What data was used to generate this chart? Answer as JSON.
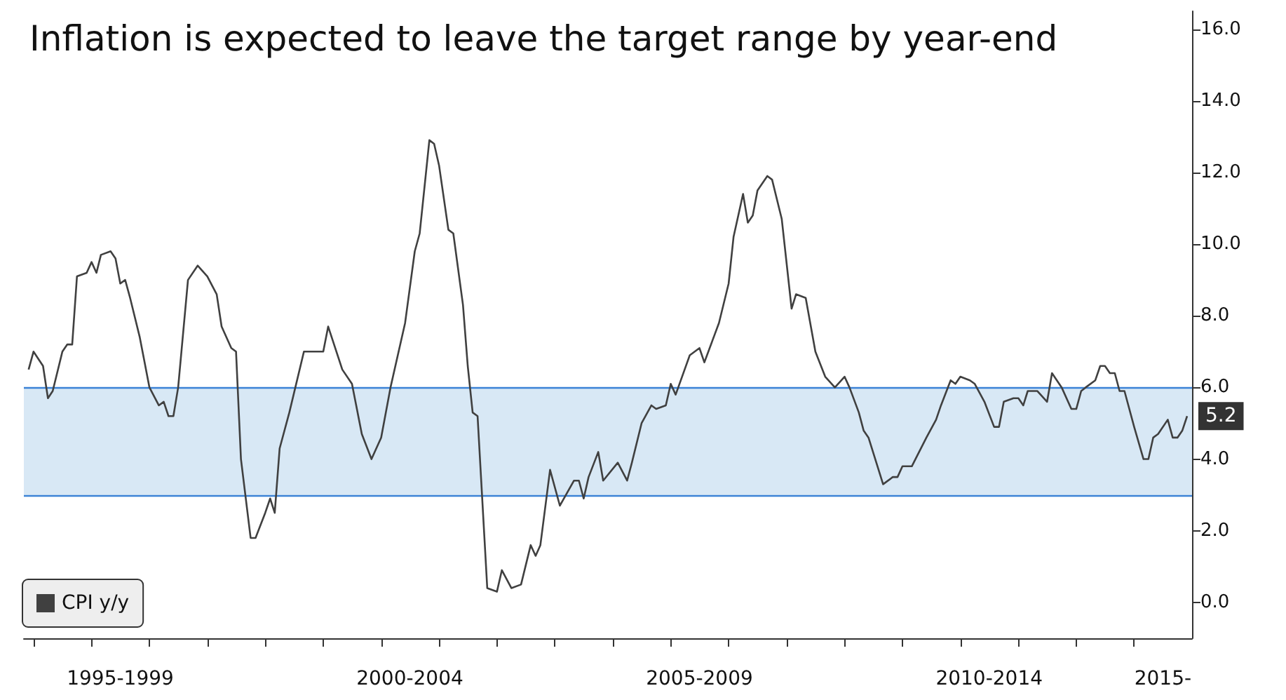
{
  "chart_data": {
    "type": "line",
    "title": "Inflation is expected to leave the target range by year-end",
    "x": [
      "1995-12",
      "1996-01",
      "1996-03",
      "1996-04",
      "1996-05",
      "1996-07",
      "1996-08",
      "1996-09",
      "1996-10",
      "1996-12",
      "1997-01",
      "1997-02",
      "1997-03",
      "1997-05",
      "1997-06",
      "1997-07",
      "1997-08",
      "1997-09",
      "1997-11",
      "1998-01",
      "1998-03",
      "1998-04",
      "1998-05",
      "1998-06",
      "1998-07",
      "1998-09",
      "1998-11",
      "1999-01",
      "1999-03",
      "1999-04",
      "1999-06",
      "1999-07",
      "1999-08",
      "1999-10",
      "1999-11",
      "2000-01",
      "2000-02",
      "2000-03",
      "2000-04",
      "2000-06",
      "2000-09",
      "2000-10",
      "2001-01",
      "2001-02",
      "2001-05",
      "2001-07",
      "2001-09",
      "2001-11",
      "2002-01",
      "2002-03",
      "2002-06",
      "2002-08",
      "2002-09",
      "2002-11",
      "2002-12",
      "2003-01",
      "2003-03",
      "2003-04",
      "2003-06",
      "2003-07",
      "2003-08",
      "2003-09",
      "2003-11",
      "2004-01",
      "2004-02",
      "2004-04",
      "2004-06",
      "2004-08",
      "2004-09",
      "2004-10",
      "2004-12",
      "2005-02",
      "2005-05",
      "2005-06",
      "2005-07",
      "2005-08",
      "2005-10",
      "2005-11",
      "2006-02",
      "2006-04",
      "2006-05",
      "2006-07",
      "2006-09",
      "2006-10",
      "2006-12",
      "2007-01",
      "2007-02",
      "2007-05",
      "2007-07",
      "2007-08",
      "2007-11",
      "2008-01",
      "2008-02",
      "2008-04",
      "2008-05",
      "2008-06",
      "2008-07",
      "2008-09",
      "2008-10",
      "2008-12",
      "2009-02",
      "2009-03",
      "2009-05",
      "2009-07",
      "2009-09",
      "2009-11",
      "2010-01",
      "2010-02",
      "2010-04",
      "2010-05",
      "2010-06",
      "2010-09",
      "2010-11",
      "2010-12",
      "2011-01",
      "2011-03",
      "2011-06",
      "2011-08",
      "2011-09",
      "2011-11",
      "2011-12",
      "2012-01",
      "2012-03",
      "2012-04",
      "2012-06",
      "2012-08",
      "2012-09",
      "2012-10",
      "2012-12",
      "2013-01",
      "2013-02",
      "2013-03",
      "2013-05",
      "2013-07",
      "2013-08",
      "2013-10",
      "2013-12",
      "2014-01",
      "2014-02",
      "2014-03",
      "2014-05",
      "2014-06",
      "2014-07",
      "2014-08",
      "2014-09",
      "2014-10",
      "2014-11",
      "2015-01",
      "2015-03",
      "2015-04",
      "2015-05",
      "2015-06",
      "2015-08",
      "2015-09",
      "2015-10",
      "2015-11",
      "2015-12"
    ],
    "series": [
      {
        "name": "CPI y/y",
        "color": "#404040",
        "values": [
          6.5,
          7.0,
          6.6,
          5.7,
          5.9,
          7.0,
          7.2,
          7.2,
          9.1,
          9.2,
          9.5,
          9.2,
          9.7,
          9.8,
          9.6,
          8.9,
          9.0,
          8.5,
          7.4,
          6.0,
          5.5,
          5.6,
          5.2,
          5.2,
          6.0,
          9.0,
          9.4,
          9.1,
          8.6,
          7.7,
          7.1,
          7.0,
          4.0,
          1.8,
          1.8,
          2.5,
          2.9,
          2.5,
          4.3,
          5.3,
          7.0,
          7.0,
          7.0,
          7.7,
          6.5,
          6.1,
          4.7,
          4.0,
          4.6,
          6.0,
          7.8,
          9.8,
          10.3,
          12.9,
          12.8,
          12.2,
          10.4,
          10.3,
          8.3,
          6.6,
          5.3,
          5.2,
          0.4,
          0.3,
          0.9,
          0.4,
          0.5,
          1.6,
          1.3,
          1.6,
          3.7,
          2.7,
          3.4,
          3.4,
          2.9,
          3.5,
          4.2,
          3.4,
          3.9,
          3.4,
          3.9,
          5.0,
          5.5,
          5.4,
          5.5,
          6.1,
          5.8,
          6.9,
          7.1,
          6.7,
          7.8,
          8.9,
          10.2,
          11.4,
          10.6,
          10.8,
          11.5,
          11.9,
          11.8,
          10.7,
          8.2,
          8.6,
          8.5,
          7.0,
          6.3,
          6.0,
          6.3,
          6.0,
          5.3,
          4.8,
          4.6,
          3.3,
          3.5,
          3.5,
          3.8,
          3.8,
          4.6,
          5.1,
          5.5,
          6.2,
          6.1,
          6.3,
          6.2,
          6.1,
          5.6,
          4.9,
          4.9,
          5.6,
          5.7,
          5.7,
          5.5,
          5.9,
          5.9,
          5.6,
          6.4,
          6.0,
          5.4,
          5.4,
          5.9,
          6.0,
          6.2,
          6.6,
          6.6,
          6.4,
          6.4,
          5.9,
          5.9,
          4.9,
          4.0,
          4.0,
          4.6,
          4.7,
          5.1,
          4.6,
          4.6,
          4.8,
          5.2
        ],
        "value_labels": [
          null,
          null,
          null,
          null,
          null,
          null,
          null,
          null,
          null,
          null,
          null,
          null,
          null,
          null,
          null,
          null,
          null,
          null,
          null,
          null,
          null,
          null,
          null,
          null,
          null,
          null,
          null,
          null,
          null,
          null,
          null,
          null,
          null,
          null,
          null,
          null,
          null,
          null,
          null,
          null,
          null,
          null,
          null,
          null,
          null,
          null,
          null,
          null,
          null,
          null,
          null,
          null,
          null,
          null,
          null,
          null,
          null,
          null,
          null,
          null,
          null,
          null,
          null,
          null,
          null,
          null,
          null,
          null,
          null,
          null,
          null,
          null,
          null,
          null,
          null,
          null,
          null,
          null,
          null,
          null,
          null,
          null,
          null,
          null,
          null,
          null,
          null,
          null,
          null,
          null,
          null,
          null,
          null,
          null,
          null,
          null,
          null,
          null,
          null,
          null,
          null,
          null,
          null,
          null,
          null,
          null,
          null,
          null,
          null,
          null,
          null,
          null,
          null,
          null,
          null,
          null,
          null,
          null,
          null,
          null,
          null,
          null,
          null,
          null,
          null,
          null,
          null,
          null,
          null,
          null,
          null,
          null,
          null,
          null,
          null,
          null,
          null,
          null,
          null,
          null,
          null,
          null,
          null,
          null,
          null,
          null,
          null,
          null,
          null,
          null,
          null,
          null,
          null,
          null,
          null,
          null,
          "5.2"
        ]
      }
    ],
    "xlim": [
      "1995-11",
      "2016-01"
    ],
    "xticks": [
      {
        "value": "1996",
        "label": null
      },
      {
        "value": "1997",
        "label": null
      },
      {
        "value": "1997-07",
        "label": "1995-1999"
      },
      {
        "value": "1998",
        "label": null
      },
      {
        "value": "1999",
        "label": null
      },
      {
        "value": "2000",
        "label": null
      },
      {
        "value": "2001",
        "label": null
      },
      {
        "value": "2002",
        "label": null
      },
      {
        "value": "2002-07",
        "label": "2000-2004"
      },
      {
        "value": "2003",
        "label": null
      },
      {
        "value": "2004",
        "label": null
      },
      {
        "value": "2005",
        "label": null
      },
      {
        "value": "2006",
        "label": null
      },
      {
        "value": "2007",
        "label": null
      },
      {
        "value": "2007-07",
        "label": "2005-2009"
      },
      {
        "value": "2008",
        "label": null
      },
      {
        "value": "2009",
        "label": null
      },
      {
        "value": "2010",
        "label": null
      },
      {
        "value": "2011",
        "label": null
      },
      {
        "value": "2012",
        "label": null
      },
      {
        "value": "2012-07",
        "label": "2010-2014"
      },
      {
        "value": "2013",
        "label": null
      },
      {
        "value": "2014",
        "label": null
      },
      {
        "value": "2015",
        "label": null
      },
      {
        "value": "2015-07",
        "label": "2015-"
      }
    ],
    "ylim": [
      -1,
      16.5
    ],
    "yticks": [
      {
        "value": 0,
        "label": "0.0"
      },
      {
        "value": 2,
        "label": "2.0"
      },
      {
        "value": 4,
        "label": "4.0"
      },
      {
        "value": 6,
        "label": "6.0"
      },
      {
        "value": 8,
        "label": "8.0"
      },
      {
        "value": 10,
        "label": "10.0"
      },
      {
        "value": 12,
        "label": "12.0"
      },
      {
        "value": 14,
        "label": "14.0"
      },
      {
        "value": 16,
        "label": "16.0"
      }
    ],
    "bands": [
      {
        "axis": "y",
        "from": 3,
        "to": 6,
        "color": "#d8e8f5"
      }
    ],
    "ref_lines": [
      {
        "axis": "y",
        "value": 3,
        "color": "#3b82d6",
        "line_style": "solid"
      },
      {
        "axis": "y",
        "value": 6,
        "color": "#3b82d6",
        "line_style": "solid"
      }
    ],
    "legend": "bottom left",
    "marker": "none",
    "line_style": "solid"
  }
}
